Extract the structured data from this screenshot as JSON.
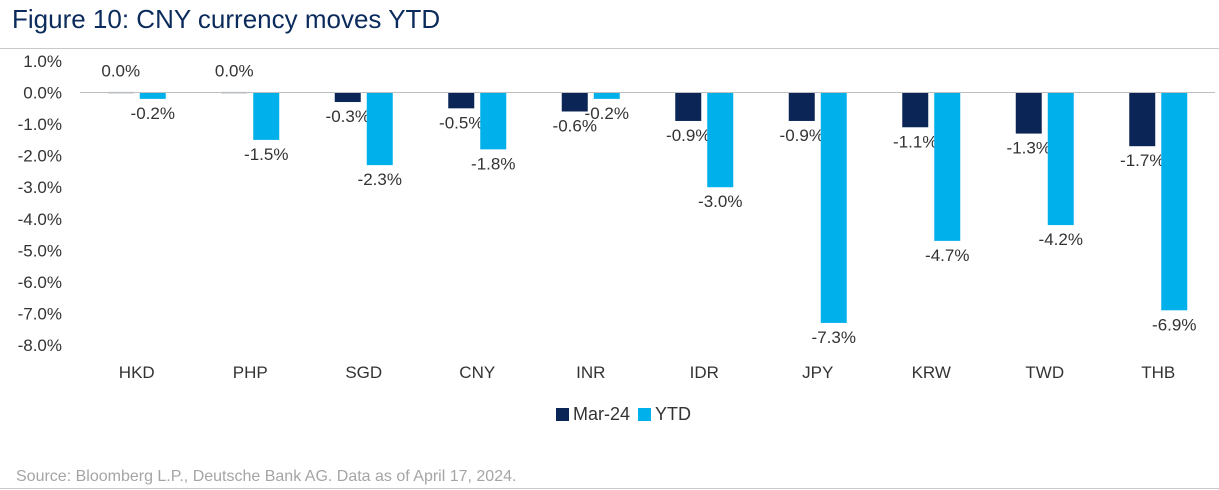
{
  "title": "Figure 10: CNY currency moves YTD",
  "source": "Source: Bloomberg L.P., Deutsche Bank AG. Data as of April 17, 2024.",
  "colors": {
    "mar24": "#0b2556",
    "ytd": "#00b0ea",
    "axis": "#444444",
    "text": "#333333"
  },
  "chart_data": {
    "type": "bar",
    "title": "Figure 10: CNY currency moves YTD",
    "categories": [
      "HKD",
      "PHP",
      "SGD",
      "CNY",
      "INR",
      "IDR",
      "JPY",
      "KRW",
      "TWD",
      "THB"
    ],
    "series": [
      {
        "name": "Mar-24",
        "values": [
          0.0,
          0.0,
          -0.3,
          -0.5,
          -0.6,
          -0.9,
          -0.9,
          -1.1,
          -1.3,
          -1.7
        ],
        "labels": [
          "0.0%",
          "0.0%",
          "-0.3%",
          "-0.5%",
          "-0.6%",
          "-0.9%",
          "-0.9%",
          "-1.1%",
          "-1.3%",
          "-1.7%"
        ]
      },
      {
        "name": "YTD",
        "values": [
          -0.2,
          -1.5,
          -2.3,
          -1.8,
          -0.2,
          -3.0,
          -7.3,
          -4.7,
          -4.2,
          -6.9
        ],
        "labels": [
          "-0.2%",
          "-1.5%",
          "-2.3%",
          "-1.8%",
          "-0.2%",
          "-3.0%",
          "-7.3%",
          "-4.7%",
          "-4.2%",
          "-6.9%"
        ]
      }
    ],
    "ylim": [
      -8.0,
      1.0
    ],
    "yticks": [
      1.0,
      0.0,
      -1.0,
      -2.0,
      -3.0,
      -4.0,
      -5.0,
      -6.0,
      -7.0,
      -8.0
    ],
    "ytick_labels": [
      "1.0%",
      "0.0%",
      "-1.0%",
      "-2.0%",
      "-3.0%",
      "-4.0%",
      "-5.0%",
      "-6.0%",
      "-7.0%",
      "-8.0%"
    ],
    "xlabel": "",
    "ylabel": "",
    "grid": false,
    "legend": "bottom-center"
  }
}
